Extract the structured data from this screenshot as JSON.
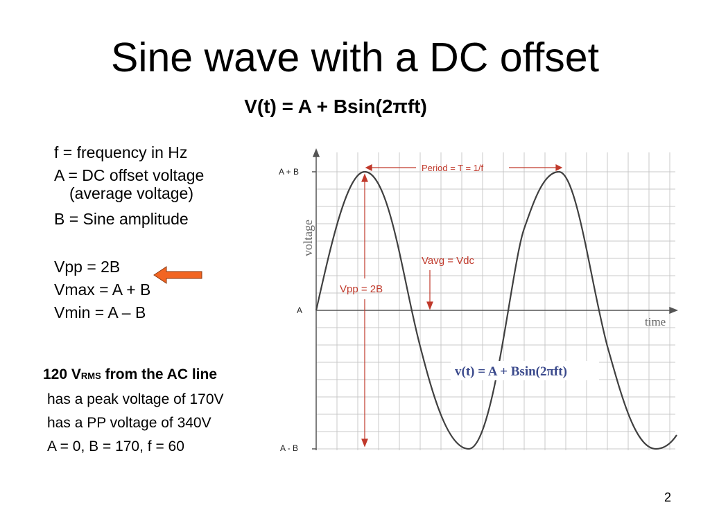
{
  "slide": {
    "title": "Sine wave with a DC offset",
    "formula": "V(t) = A + Bsin(2πft)",
    "definitions": {
      "f": "f = frequency in Hz",
      "a_line1": "A = DC offset voltage",
      "a_line2": "(average voltage)",
      "b": "B = Sine amplitude",
      "vpp": "Vpp = 2B",
      "vmax": "Vmax = A + B",
      "vmin": "Vmin = A – B"
    },
    "rms": {
      "head_prefix": "120 V",
      "head_sub": "RMS",
      "head_suffix": " from the AC line",
      "peak": "has a peak voltage of 170V",
      "pp": "has a PP voltage of 340V",
      "values": "A = 0, B = 170, f = 60"
    },
    "page_number": "2",
    "arrow_color": "#F26522"
  },
  "figure": {
    "y_axis_label": "voltage",
    "x_axis_label": "time",
    "tick_top": "A + B",
    "tick_mid": "A",
    "tick_bottom": "A - B",
    "period_label": "Period = T = 1/f",
    "vavg_label": "Vavg = Vdc",
    "vpp_label": "Vpp = 2B",
    "equation_label": "v(t) = A + Bsin(2πft)",
    "annotation_color": "#C0392B",
    "equation_color": "#3B4A8C",
    "curve_color": "#404040"
  }
}
